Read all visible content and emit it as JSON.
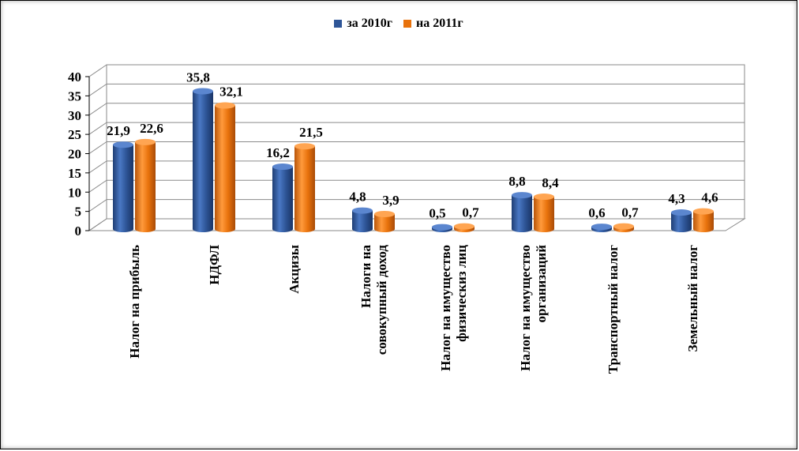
{
  "chart_data": {
    "type": "bar",
    "title": "",
    "xlabel": "",
    "ylabel": "",
    "ylim": [
      0,
      40
    ],
    "yticks": [
      "0",
      "5",
      "10",
      "15",
      "20",
      "25",
      "30",
      "35",
      "40"
    ],
    "grid": true,
    "legend_position": "top",
    "categories": [
      "Налог на прибыль",
      "НДФЛ",
      "Акцизы",
      "Налоги на совокупный доход",
      "Налог на имущество физическиз лиц",
      "Налог на имущество организаций",
      "Транспортный налог",
      "Земельный налог"
    ],
    "series": [
      {
        "name": "за 2010г",
        "color": "#2E5597",
        "values": [
          21.9,
          35.8,
          16.2,
          4.8,
          0.5,
          8.8,
          0.6,
          4.3
        ],
        "labels": [
          "21,9",
          "35,8",
          "16,2",
          "4,8",
          "0,5",
          "8,8",
          "0,6",
          "4,3"
        ]
      },
      {
        "name": "на 2011г",
        "color": "#E8720C",
        "values": [
          22.6,
          32.1,
          21.5,
          3.9,
          0.7,
          8.4,
          0.7,
          4.6
        ],
        "labels": [
          "22,6",
          "32,1",
          "21,5",
          "3,9",
          "0,7",
          "8,4",
          "0,7",
          "4,6"
        ]
      }
    ]
  }
}
